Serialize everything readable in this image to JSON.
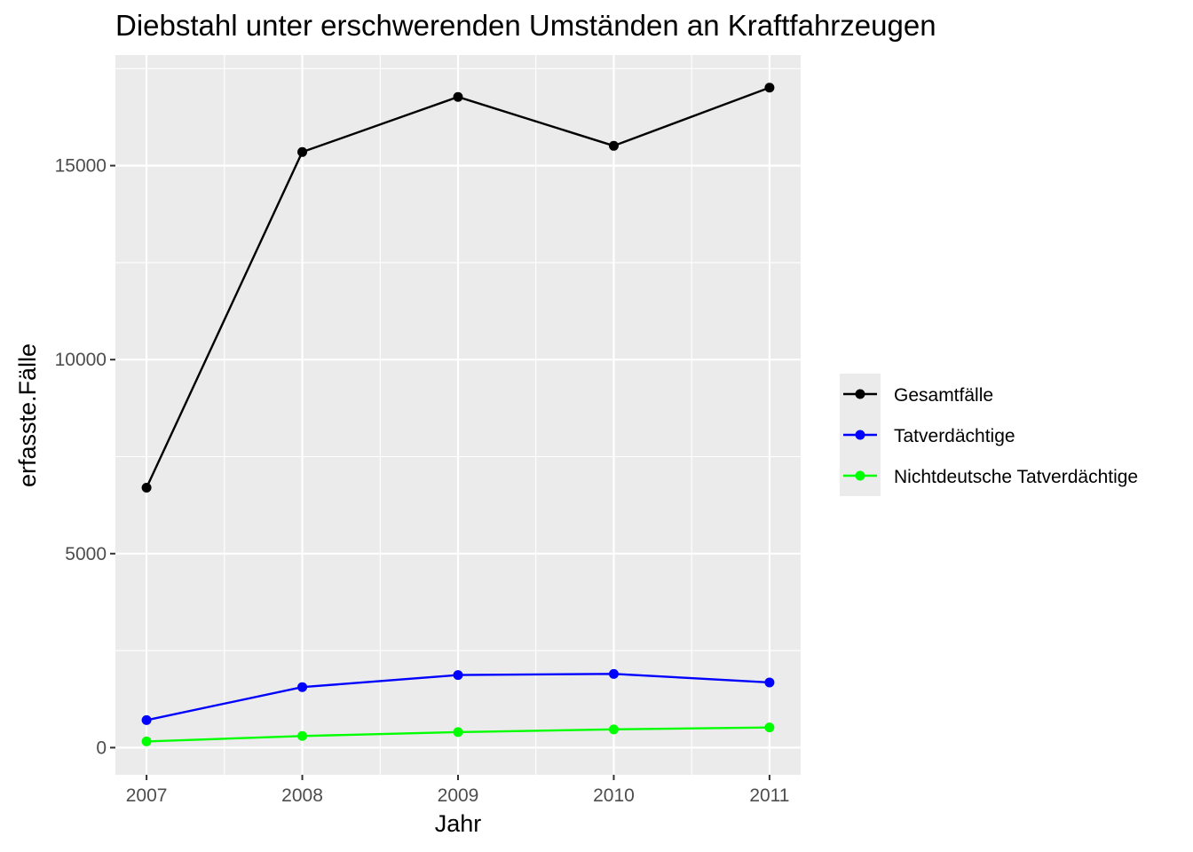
{
  "chart_data": {
    "type": "line",
    "title": "Diebstahl unter erschwerenden Umständen an Kraftfahrzeugen",
    "xlabel": "Jahr",
    "ylabel": "erfasste.Fälle",
    "x": [
      2007,
      2008,
      2009,
      2010,
      2011
    ],
    "x_ticks": [
      "2007",
      "2008",
      "2009",
      "2010",
      "2011"
    ],
    "xlim": [
      2006.8,
      2011.2
    ],
    "ylim": [
      -700,
      17850
    ],
    "y_ticks": [
      0,
      5000,
      10000,
      15000
    ],
    "grid": true,
    "legend_position": "right",
    "series": [
      {
        "name": "Gesamtfälle",
        "color": "#000000",
        "values": [
          6700,
          15350,
          16770,
          15510,
          17010
        ]
      },
      {
        "name": "Tatverdächtige",
        "color": "#0000ff",
        "values": [
          710,
          1560,
          1870,
          1900,
          1680
        ]
      },
      {
        "name": "Nichtdeutsche Tatverdächtige",
        "color": "#00ff00",
        "values": [
          160,
          300,
          400,
          470,
          520
        ]
      }
    ]
  }
}
